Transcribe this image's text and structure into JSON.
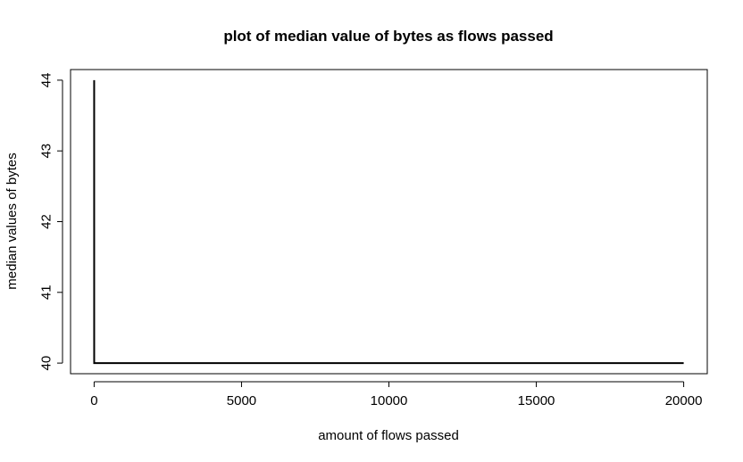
{
  "chart_data": {
    "type": "line",
    "title": "plot of median value of bytes as flows passed",
    "xlabel": "amount of flows passed",
    "ylabel": "median values of bytes",
    "xlim": [
      -800,
      20800
    ],
    "ylim": [
      39.85,
      44.15
    ],
    "x_ticks": [
      0,
      5000,
      10000,
      15000,
      20000
    ],
    "y_ticks": [
      40,
      41,
      42,
      43,
      44
    ],
    "grid": false,
    "legend": "none",
    "series": [
      {
        "x": [
          1,
          2,
          10,
          20000
        ],
        "values": [
          44,
          40,
          40,
          40
        ],
        "color": "#000000"
      }
    ]
  }
}
